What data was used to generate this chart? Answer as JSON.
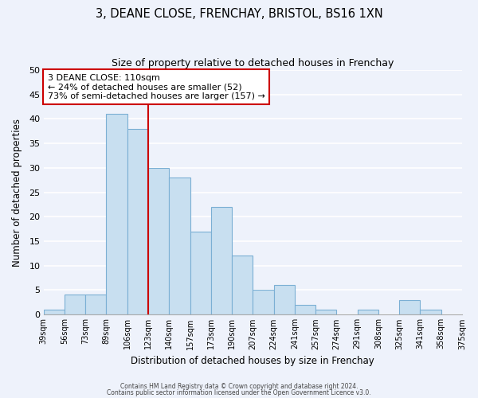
{
  "title": "3, DEANE CLOSE, FRENCHAY, BRISTOL, BS16 1XN",
  "subtitle": "Size of property relative to detached houses in Frenchay",
  "xlabel": "Distribution of detached houses by size in Frenchay",
  "ylabel": "Number of detached properties",
  "bin_labels": [
    "39sqm",
    "56sqm",
    "73sqm",
    "89sqm",
    "106sqm",
    "123sqm",
    "140sqm",
    "157sqm",
    "173sqm",
    "190sqm",
    "207sqm",
    "224sqm",
    "241sqm",
    "257sqm",
    "274sqm",
    "291sqm",
    "308sqm",
    "325sqm",
    "341sqm",
    "358sqm",
    "375sqm"
  ],
  "values": [
    1,
    4,
    4,
    41,
    38,
    30,
    28,
    17,
    22,
    12,
    5,
    6,
    2,
    1,
    0,
    1,
    0,
    3,
    1,
    0
  ],
  "bar_color": "#c8dff0",
  "bar_edge_color": "#7bafd4",
  "vline_x_index": 4,
  "vline_color": "#cc0000",
  "ylim": [
    0,
    50
  ],
  "yticks": [
    0,
    5,
    10,
    15,
    20,
    25,
    30,
    35,
    40,
    45,
    50
  ],
  "annotation_text": "3 DEANE CLOSE: 110sqm\n← 24% of detached houses are smaller (52)\n73% of semi-detached houses are larger (157) →",
  "annotation_box_color": "#ffffff",
  "annotation_box_edge": "#cc0000",
  "footer_line1": "Contains HM Land Registry data © Crown copyright and database right 2024.",
  "footer_line2": "Contains public sector information licensed under the Open Government Licence v3.0.",
  "background_color": "#eef2fb",
  "grid_color": "#ffffff",
  "spine_color": "#aaaaaa"
}
